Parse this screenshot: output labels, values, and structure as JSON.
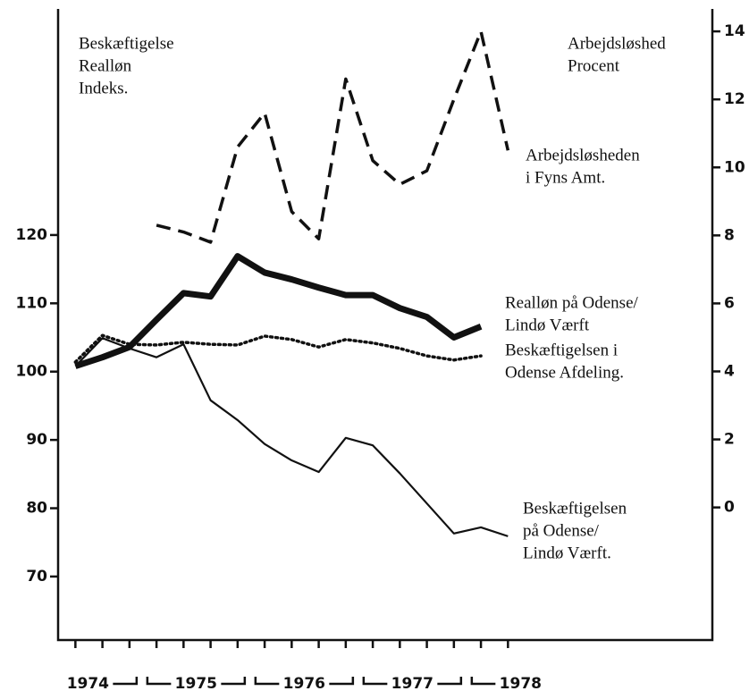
{
  "chart_data": {
    "type": "line",
    "left_axis_label": [
      "Beskæftigelse",
      "Realløn",
      "Indeks."
    ],
    "right_axis_label": [
      "Arbejdsløshed",
      "Procent"
    ],
    "x": [
      1974,
      1974.25,
      1974.5,
      1974.75,
      1975,
      1975.25,
      1975.5,
      1975.75,
      1976,
      1976.25,
      1976.5,
      1976.75,
      1977,
      1977.25,
      1977.5,
      1977.75,
      1978
    ],
    "xlim": [
      1973.84,
      1979.89
    ],
    "xticks": [
      1974,
      1975,
      1976,
      1977,
      1978
    ],
    "ylim": [
      60.7,
      153.1
    ],
    "yticks": [
      70,
      80,
      90,
      100,
      110,
      120
    ],
    "y2lim": [
      -3.9,
      14.66
    ],
    "y2ticks": [
      0,
      2,
      4,
      6,
      8,
      10,
      12,
      14
    ],
    "series": [
      {
        "label_lines": [
          "Arbejdsløsheden",
          "i Fyns Amt."
        ],
        "color": "#111111",
        "style": "dashed",
        "width": 3.5,
        "axis": "y2",
        "values": [
          null,
          null,
          null,
          8.3,
          8.1,
          7.8,
          10.6,
          11.6,
          8.7,
          7.9,
          12.6,
          10.2,
          9.5,
          9.9,
          12.0,
          14.0,
          10.5
        ]
      },
      {
        "label_lines": [
          "Realløn på Odense/",
          "Lindø Værft"
        ],
        "color": "#111111",
        "style": "solid",
        "width": 7,
        "values": [
          100.8,
          102.1,
          103.6,
          107.6,
          111.5,
          111.0,
          116.9,
          114.5,
          113.5,
          112.3,
          111.2,
          111.2,
          109.3,
          108.0,
          105.0,
          106.6,
          null
        ]
      },
      {
        "label_lines": [
          "Beskæftigelsen i",
          "Odense Afdeling."
        ],
        "color": "#111111",
        "style": "dotted",
        "width": 3.5,
        "values": [
          101.4,
          105.3,
          104.0,
          103.9,
          104.3,
          104.0,
          103.9,
          105.2,
          104.7,
          103.6,
          104.7,
          104.2,
          103.4,
          102.3,
          101.7,
          102.3,
          null
        ]
      },
      {
        "label_lines": [
          "Beskæftigelsen",
          "på Odense/",
          "Lindø Værft."
        ],
        "color": "#111111",
        "style": "solid",
        "width": 2.2,
        "values": [
          100.8,
          104.9,
          103.4,
          102.1,
          104.0,
          95.8,
          92.9,
          89.4,
          87.0,
          85.3,
          90.3,
          89.2,
          85.1,
          80.7,
          76.3,
          77.2,
          75.9
        ]
      }
    ]
  }
}
